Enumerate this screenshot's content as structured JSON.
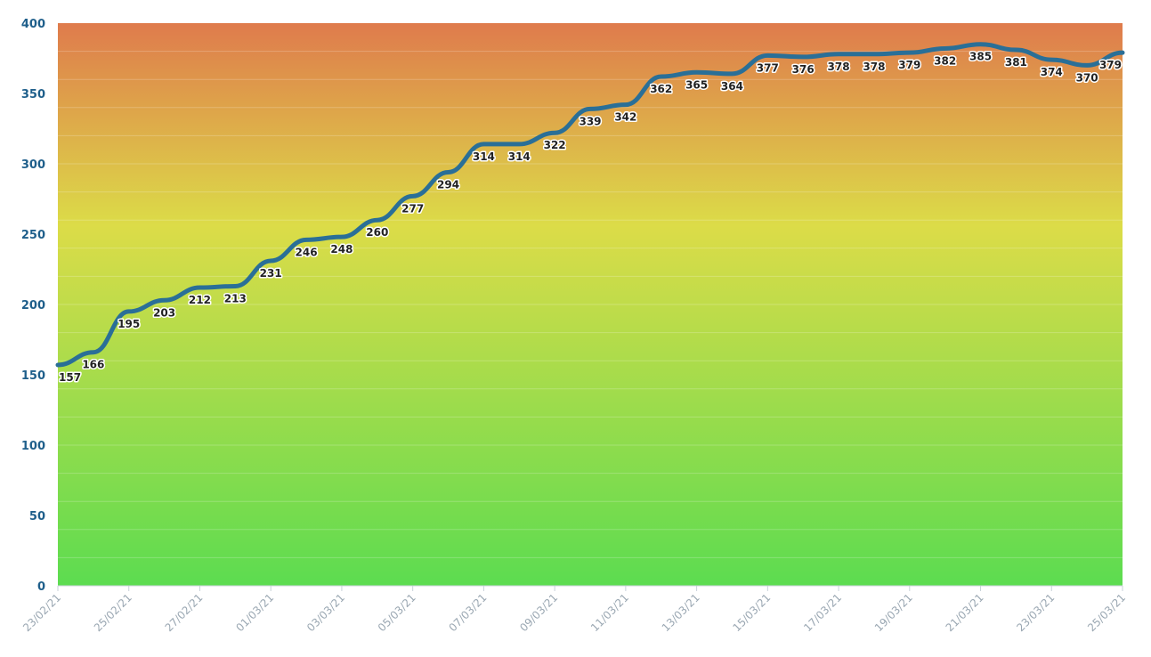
{
  "chart_data": {
    "type": "line",
    "title": "",
    "xlabel": "",
    "ylabel": "",
    "ylim": [
      0,
      400
    ],
    "yticks": [
      0,
      50,
      100,
      150,
      200,
      250,
      300,
      350,
      400
    ],
    "x": [
      "23/02/21",
      "24/02/21",
      "25/02/21",
      "26/02/21",
      "27/02/21",
      "28/02/21",
      "01/03/21",
      "02/03/21",
      "03/03/21",
      "04/03/21",
      "05/03/21",
      "06/03/21",
      "07/03/21",
      "08/03/21",
      "09/03/21",
      "10/03/21",
      "11/03/21",
      "12/03/21",
      "13/03/21",
      "14/03/21",
      "15/03/21",
      "16/03/21",
      "17/03/21",
      "18/03/21",
      "19/03/21",
      "20/03/21",
      "21/03/21",
      "22/03/21",
      "23/03/21",
      "24/03/21",
      "25/03/21"
    ],
    "xtick_labels": [
      "23/02/21",
      "25/02/21",
      "27/02/21",
      "01/03/21",
      "03/03/21",
      "05/03/21",
      "07/03/21",
      "09/03/21",
      "11/03/21",
      "13/03/21",
      "15/03/21",
      "17/03/21",
      "19/03/21",
      "21/03/21",
      "23/03/21",
      "25/03/21"
    ],
    "series": [
      {
        "values": [
          157,
          166,
          195,
          203,
          212,
          213,
          231,
          246,
          248,
          260,
          277,
          294,
          314,
          314,
          322,
          339,
          342,
          362,
          365,
          364,
          377,
          376,
          378,
          378,
          379,
          382,
          385,
          381,
          374,
          370,
          379
        ]
      }
    ],
    "line_color": "#2a6f97",
    "gradient_colors": {
      "top": "#df7b4c",
      "middle": "#dcdc48",
      "bottom": "#5cdc50"
    },
    "grid": true,
    "legend": "none",
    "data_labels": true
  }
}
